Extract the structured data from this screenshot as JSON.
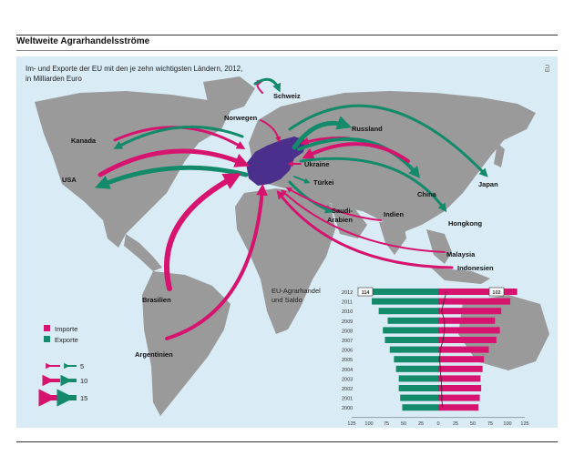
{
  "header": {
    "headline": "Weltweite Agrarhandelsströme",
    "subtitle_line1": "Im- und Exporte der EU mit den je zehn wichtigsten Ländern, 2012,",
    "subtitle_line2": "in Milliarden Euro",
    "eu_tag": "EU"
  },
  "colors": {
    "import": "#d6136f",
    "export": "#138a6a",
    "eu": "#4b2f8c",
    "land": "#9a9a9a",
    "sea": "#d9ebf5"
  },
  "map_labels": {
    "schweiz": "Schweiz",
    "norwegen": "Norwegen",
    "kanada": "Kanada",
    "russland": "Russland",
    "usa": "USA",
    "ukraine": "Ukraine",
    "tuerkei": "Türkei",
    "japan": "Japan",
    "china": "China",
    "saudi": "Saudi-",
    "arabien": "Arabien",
    "indien": "Indien",
    "hongkong": "Hongkong",
    "malaysia": "Malaysia",
    "indonesien": "Indonesien",
    "brasilien": "Brasilien",
    "argentinien": "Argentinien"
  },
  "legend": {
    "import_label": "Importe",
    "export_label": "Exporte",
    "scale": [
      "5",
      "10",
      "15"
    ]
  },
  "chart_data": {
    "type": "bar",
    "title_line1": "EU-Agrarhandel",
    "title_line2": "und Saldo",
    "categories": [
      "2012",
      "2011",
      "2010",
      "2009",
      "2008",
      "2007",
      "2006",
      "2005",
      "2004",
      "2003",
      "2002",
      "2001",
      "2000"
    ],
    "series": [
      {
        "name": "Importe",
        "values": [
          114,
          104,
          91,
          82,
          89,
          84,
          73,
          66,
          64,
          61,
          62,
          60,
          58
        ]
      },
      {
        "name": "Exporte",
        "values": [
          102,
          96,
          86,
          73,
          80,
          77,
          70,
          64,
          61,
          57,
          57,
          55,
          52
        ]
      }
    ],
    "value_labels": {
      "import_2012": "114",
      "export_2012": "102"
    },
    "xticks": [
      "125",
      "100",
      "75",
      "50",
      "25",
      "0",
      "25",
      "50",
      "75",
      "100",
      "125"
    ],
    "xlim": [
      -125,
      125
    ]
  }
}
